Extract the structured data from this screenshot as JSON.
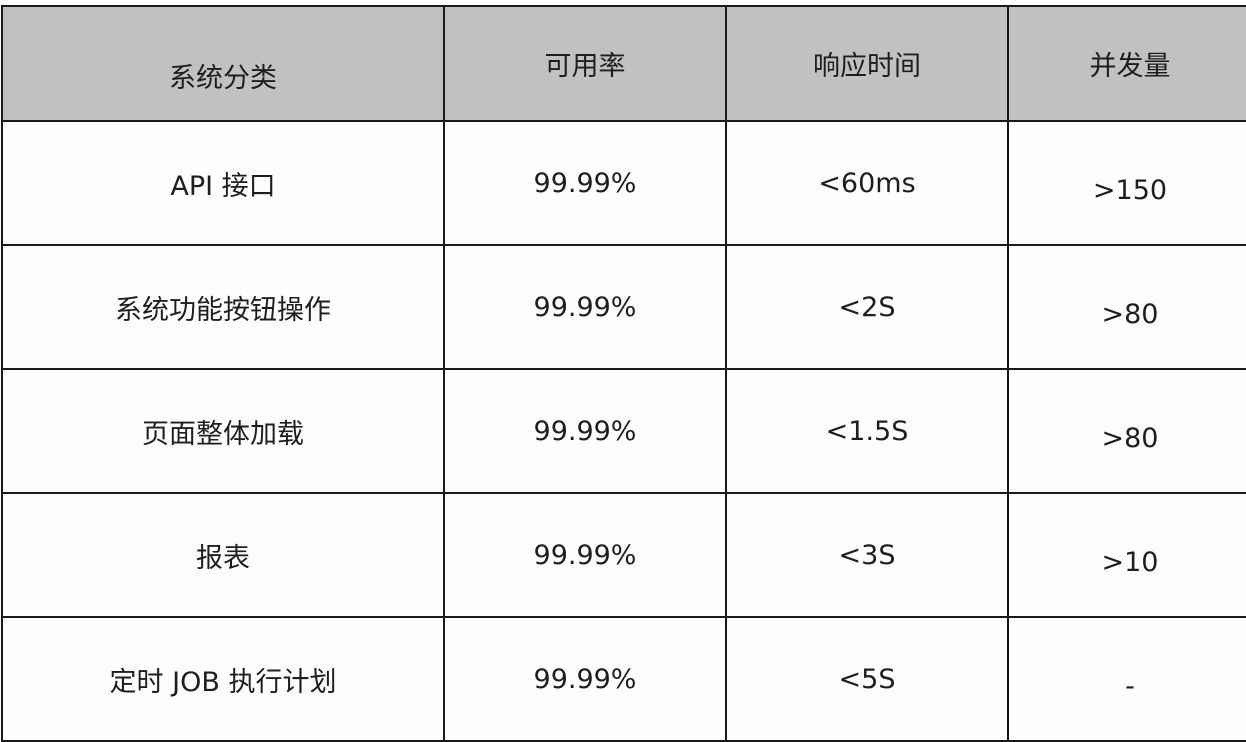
{
  "table": {
    "header_bg": "#c1c1c1",
    "headers": [
      "系统分类",
      "可用率",
      "响应时间",
      "并发量"
    ],
    "rows": [
      [
        "API 接口",
        "99.99%",
        "<60ms",
        ">150"
      ],
      [
        "系统功能按钮操作",
        "99.99%",
        "<2S",
        ">80"
      ],
      [
        "页面整体加载",
        "99.99%",
        "<1.5S",
        ">80"
      ],
      [
        "报表",
        "99.99%",
        "<3S",
        ">10"
      ],
      [
        "定时 JOB 执行计划",
        "99.99%",
        "<5S",
        "-"
      ]
    ]
  }
}
